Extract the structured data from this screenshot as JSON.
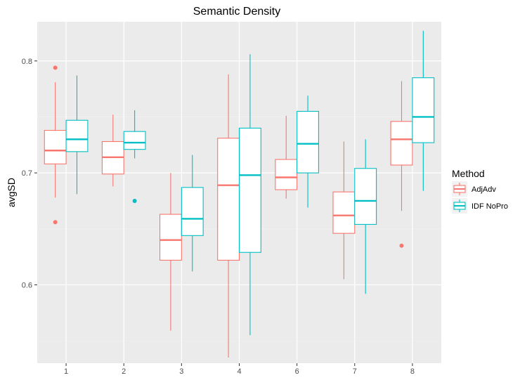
{
  "chart_data": {
    "type": "boxplot",
    "title": "Semantic Density",
    "xlabel": "",
    "ylabel": "avgSD",
    "ylim": [
      0.53,
      0.835
    ],
    "yticks": [
      0.6,
      0.7,
      0.8
    ],
    "ytick_labels": [
      "0.6",
      "0.7",
      "0.8"
    ],
    "categories": [
      "1",
      "2",
      "3",
      "4",
      "6",
      "7",
      "8"
    ],
    "grid": true,
    "legend": {
      "title": "Method",
      "position": "right"
    },
    "series": [
      {
        "name": "AdjAdv",
        "color": "#F8766D",
        "boxes": [
          {
            "q1": 0.708,
            "median": 0.72,
            "q3": 0.738,
            "low": 0.678,
            "high": 0.781,
            "outliers": [
              0.794,
              0.656
            ]
          },
          {
            "q1": 0.699,
            "median": 0.714,
            "q3": 0.728,
            "low": 0.688,
            "high": 0.752,
            "outliers": []
          },
          {
            "q1": 0.622,
            "median": 0.64,
            "q3": 0.663,
            "low": 0.559,
            "high": 0.7,
            "outliers": []
          },
          {
            "q1": 0.622,
            "median": 0.689,
            "q3": 0.731,
            "low": 0.535,
            "high": 0.788,
            "outliers": []
          },
          {
            "q1": 0.685,
            "median": 0.696,
            "q3": 0.712,
            "low": 0.677,
            "high": 0.751,
            "outliers": []
          },
          {
            "q1": 0.646,
            "median": 0.662,
            "q3": 0.683,
            "low": 0.605,
            "high": 0.728,
            "outliers": []
          },
          {
            "q1": 0.707,
            "median": 0.73,
            "q3": 0.746,
            "low": 0.666,
            "high": 0.782,
            "outliers": [
              0.635
            ]
          }
        ]
      },
      {
        "name": "IDF NoPro",
        "color": "#00BFC4",
        "boxes": [
          {
            "q1": 0.719,
            "median": 0.73,
            "q3": 0.747,
            "low": 0.681,
            "high": 0.787,
            "outliers": []
          },
          {
            "q1": 0.721,
            "median": 0.727,
            "q3": 0.737,
            "low": 0.713,
            "high": 0.756,
            "outliers": [
              0.675
            ]
          },
          {
            "q1": 0.644,
            "median": 0.659,
            "q3": 0.687,
            "low": 0.612,
            "high": 0.716,
            "outliers": []
          },
          {
            "q1": 0.629,
            "median": 0.698,
            "q3": 0.74,
            "low": 0.555,
            "high": 0.806,
            "outliers": []
          },
          {
            "q1": 0.7,
            "median": 0.726,
            "q3": 0.755,
            "low": 0.669,
            "high": 0.769,
            "outliers": []
          },
          {
            "q1": 0.654,
            "median": 0.675,
            "q3": 0.704,
            "low": 0.592,
            "high": 0.73,
            "outliers": []
          },
          {
            "q1": 0.727,
            "median": 0.75,
            "q3": 0.785,
            "low": 0.684,
            "high": 0.827,
            "outliers": []
          }
        ]
      }
    ]
  }
}
